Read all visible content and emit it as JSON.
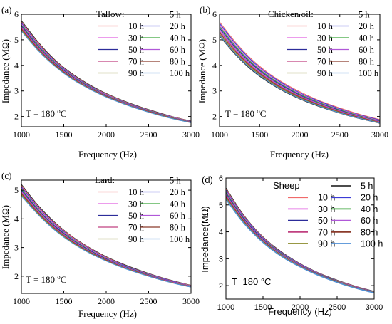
{
  "colors": {
    "5 h": "#333333",
    "10 h": "#f06a6a",
    "20 h": "#3b3bd6",
    "30 h": "#e060e0",
    "40 h": "#3aa63a",
    "50 h": "#2c2c9a",
    "60 h": "#b058d8",
    "70 h": "#c04080",
    "80 h": "#8b3a2a",
    "90 h": "#8a8a2a",
    "100 h": "#4f8fd6"
  },
  "chart_data": [
    {
      "type": "line",
      "panel_label": "(a)",
      "legend_title": "Tallow:",
      "annotation": "T = 180 ",
      "annotation_sup": "o",
      "annotation_unit": "C",
      "xlabel": "Frequency (Hz)",
      "ylabel": "Impedance (MΩ)",
      "xlim": [
        1000,
        3000
      ],
      "ylim": [
        1.6,
        6.0
      ],
      "xticks": [
        1000,
        1500,
        2000,
        2500,
        3000
      ],
      "yticks": [
        2,
        3,
        4,
        5,
        6
      ],
      "grid": false,
      "legend_position": "top-right",
      "x": [
        1000,
        1200,
        1400,
        1600,
        1800,
        2000,
        2200,
        2400,
        2600,
        2800,
        3000
      ],
      "series": [
        {
          "name": "5 h",
          "values": [
            5.75,
            4.9,
            4.2,
            3.67,
            3.25,
            2.9,
            2.62,
            2.38,
            2.17,
            1.98,
            1.82
          ]
        },
        {
          "name": "10 h",
          "values": [
            5.7,
            4.86,
            4.17,
            3.64,
            3.22,
            2.88,
            2.6,
            2.36,
            2.15,
            1.97,
            1.81
          ]
        },
        {
          "name": "20 h",
          "values": [
            5.66,
            4.82,
            4.14,
            3.62,
            3.2,
            2.86,
            2.58,
            2.35,
            2.14,
            1.96,
            1.8
          ]
        },
        {
          "name": "30 h",
          "values": [
            5.62,
            4.79,
            4.11,
            3.6,
            3.18,
            2.85,
            2.57,
            2.34,
            2.13,
            1.95,
            1.79
          ]
        },
        {
          "name": "40 h",
          "values": [
            5.58,
            4.76,
            4.09,
            3.58,
            3.17,
            2.83,
            2.56,
            2.33,
            2.12,
            1.94,
            1.79
          ]
        },
        {
          "name": "50 h",
          "values": [
            5.54,
            4.72,
            4.06,
            3.56,
            3.15,
            2.82,
            2.55,
            2.32,
            2.11,
            1.93,
            1.78
          ]
        },
        {
          "name": "60 h",
          "values": [
            5.5,
            4.69,
            4.04,
            3.54,
            3.14,
            2.81,
            2.54,
            2.31,
            2.1,
            1.93,
            1.78
          ]
        },
        {
          "name": "70 h",
          "values": [
            5.46,
            4.66,
            4.02,
            3.52,
            3.12,
            2.8,
            2.53,
            2.3,
            2.1,
            1.92,
            1.77
          ]
        },
        {
          "name": "80 h",
          "values": [
            5.42,
            4.63,
            4.0,
            3.5,
            3.11,
            2.79,
            2.52,
            2.29,
            2.09,
            1.92,
            1.77
          ]
        },
        {
          "name": "90 h",
          "values": [
            5.38,
            4.6,
            3.97,
            3.48,
            3.09,
            2.77,
            2.51,
            2.28,
            2.08,
            1.91,
            1.76
          ]
        },
        {
          "name": "100 h",
          "values": [
            5.34,
            4.57,
            3.95,
            3.46,
            3.08,
            2.76,
            2.5,
            2.27,
            2.07,
            1.9,
            1.76
          ]
        }
      ]
    },
    {
      "type": "line",
      "panel_label": "(b)",
      "legend_title": "Chicken oil:",
      "annotation": "T = 180 ",
      "annotation_sup": "o",
      "annotation_unit": "C",
      "xlabel": "Frequency (Hz)",
      "ylabel": "Impedance (MΩ)",
      "xlim": [
        1000,
        3000
      ],
      "ylim": [
        1.6,
        6.0
      ],
      "xticks": [
        1000,
        1500,
        2000,
        2500,
        3000
      ],
      "yticks": [
        2,
        3,
        4,
        5,
        6
      ],
      "grid": false,
      "legend_position": "top-right",
      "x": [
        1000,
        1200,
        1400,
        1600,
        1800,
        2000,
        2200,
        2400,
        2600,
        2800,
        3000
      ],
      "series": [
        {
          "name": "5 h",
          "values": [
            5.15,
            4.42,
            3.82,
            3.36,
            2.99,
            2.69,
            2.44,
            2.23,
            2.04,
            1.88,
            1.74
          ]
        },
        {
          "name": "10 h",
          "values": [
            5.7,
            4.9,
            4.24,
            3.72,
            3.31,
            2.97,
            2.68,
            2.44,
            2.23,
            2.04,
            1.88
          ]
        },
        {
          "name": "20 h",
          "values": [
            5.64,
            4.85,
            4.19,
            3.68,
            3.27,
            2.93,
            2.65,
            2.41,
            2.2,
            2.02,
            1.86
          ]
        },
        {
          "name": "30 h",
          "values": [
            5.58,
            4.79,
            4.14,
            3.64,
            3.23,
            2.9,
            2.62,
            2.38,
            2.18,
            2.0,
            1.84
          ]
        },
        {
          "name": "40 h",
          "values": [
            5.52,
            4.74,
            4.1,
            3.6,
            3.2,
            2.87,
            2.6,
            2.36,
            2.16,
            1.98,
            1.82
          ]
        },
        {
          "name": "50 h",
          "values": [
            5.46,
            4.69,
            4.06,
            3.56,
            3.17,
            2.84,
            2.57,
            2.34,
            2.14,
            1.96,
            1.81
          ]
        },
        {
          "name": "60 h",
          "values": [
            5.4,
            4.64,
            4.01,
            3.53,
            3.13,
            2.81,
            2.55,
            2.32,
            2.12,
            1.95,
            1.8
          ]
        },
        {
          "name": "70 h",
          "values": [
            5.34,
            4.59,
            3.97,
            3.49,
            3.1,
            2.79,
            2.52,
            2.3,
            2.1,
            1.93,
            1.78
          ]
        },
        {
          "name": "80 h",
          "values": [
            5.28,
            4.54,
            3.93,
            3.46,
            3.07,
            2.76,
            2.5,
            2.28,
            2.08,
            1.92,
            1.77
          ]
        },
        {
          "name": "90 h",
          "values": [
            5.22,
            4.49,
            3.89,
            3.42,
            3.04,
            2.73,
            2.48,
            2.26,
            2.06,
            1.9,
            1.76
          ]
        },
        {
          "name": "100 h",
          "values": [
            5.18,
            4.45,
            3.85,
            3.39,
            3.01,
            2.71,
            2.46,
            2.24,
            2.05,
            1.89,
            1.75
          ]
        }
      ]
    },
    {
      "type": "line",
      "panel_label": "(c)",
      "legend_title": "Lard:",
      "annotation": "T = 180 ",
      "annotation_sup": "o",
      "annotation_unit": "C",
      "xlabel": "Frequency (Hz)",
      "ylabel": "Impedance (MΩ)",
      "xlim": [
        1000,
        3000
      ],
      "ylim": [
        1.4,
        5.35
      ],
      "xticks": [
        1000,
        1500,
        2000,
        2500,
        3000
      ],
      "yticks": [
        2,
        3,
        4,
        5
      ],
      "grid": false,
      "legend_position": "top-right",
      "x": [
        1000,
        1200,
        1400,
        1600,
        1800,
        2000,
        2200,
        2400,
        2600,
        2800,
        3000
      ],
      "series": [
        {
          "name": "5 h",
          "values": [
            5.2,
            4.46,
            3.86,
            3.38,
            3.0,
            2.68,
            2.42,
            2.2,
            2.0,
            1.83,
            1.68
          ]
        },
        {
          "name": "10 h",
          "values": [
            5.16,
            4.42,
            3.83,
            3.36,
            2.98,
            2.66,
            2.4,
            2.18,
            1.99,
            1.82,
            1.67
          ]
        },
        {
          "name": "20 h",
          "values": [
            5.12,
            4.39,
            3.8,
            3.33,
            2.96,
            2.64,
            2.39,
            2.17,
            1.98,
            1.81,
            1.66
          ]
        },
        {
          "name": "30 h",
          "values": [
            5.08,
            4.36,
            3.77,
            3.31,
            2.94,
            2.63,
            2.37,
            2.16,
            1.97,
            1.8,
            1.66
          ]
        },
        {
          "name": "40 h",
          "values": [
            5.04,
            4.32,
            3.74,
            3.29,
            2.92,
            2.61,
            2.36,
            2.15,
            1.96,
            1.79,
            1.65
          ]
        },
        {
          "name": "50 h",
          "values": [
            5.0,
            4.29,
            3.72,
            3.26,
            2.9,
            2.6,
            2.35,
            2.14,
            1.95,
            1.79,
            1.64
          ]
        },
        {
          "name": "60 h",
          "values": [
            4.96,
            4.26,
            3.69,
            3.24,
            2.88,
            2.58,
            2.34,
            2.13,
            1.94,
            1.78,
            1.64
          ]
        },
        {
          "name": "70 h",
          "values": [
            4.92,
            4.23,
            3.67,
            3.22,
            2.86,
            2.57,
            2.32,
            2.12,
            1.93,
            1.77,
            1.63
          ]
        },
        {
          "name": "80 h",
          "values": [
            4.88,
            4.2,
            3.64,
            3.2,
            2.85,
            2.56,
            2.31,
            2.11,
            1.92,
            1.76,
            1.63
          ]
        },
        {
          "name": "90 h",
          "values": [
            4.84,
            4.17,
            3.62,
            3.18,
            2.83,
            2.54,
            2.3,
            2.1,
            1.91,
            1.76,
            1.62
          ]
        },
        {
          "name": "100 h",
          "values": [
            4.8,
            4.14,
            3.59,
            3.16,
            2.81,
            2.53,
            2.29,
            2.09,
            1.91,
            1.75,
            1.62
          ]
        }
      ]
    },
    {
      "type": "line",
      "panel_label": "(d)",
      "legend_title": "Sheep",
      "annotation": "T=180 °C",
      "xlabel": "Frequency (Hz)",
      "ylabel": "Impedance(MΩ)",
      "xlim": [
        1000,
        3000
      ],
      "ylim": [
        1.5,
        6.0
      ],
      "xticks": [
        1000,
        1500,
        2000,
        2500,
        3000
      ],
      "yticks": [
        2,
        3,
        4,
        5,
        6
      ],
      "grid": false,
      "legend_position": "top-right",
      "x": [
        1000,
        1200,
        1400,
        1600,
        1800,
        2000,
        2200,
        2400,
        2600,
        2800,
        3000
      ],
      "series": [
        {
          "name": "5 h",
          "values": [
            5.62,
            4.76,
            4.08,
            3.56,
            3.15,
            2.81,
            2.53,
            2.3,
            2.1,
            1.93,
            1.78
          ]
        },
        {
          "name": "10 h",
          "values": [
            5.58,
            4.73,
            4.06,
            3.54,
            3.13,
            2.8,
            2.52,
            2.29,
            2.09,
            1.92,
            1.77
          ]
        },
        {
          "name": "20 h",
          "values": [
            5.54,
            4.7,
            4.04,
            3.52,
            3.12,
            2.79,
            2.51,
            2.28,
            2.08,
            1.91,
            1.77
          ]
        },
        {
          "name": "30 h",
          "values": [
            5.5,
            4.67,
            4.01,
            3.5,
            3.1,
            2.77,
            2.5,
            2.27,
            2.08,
            1.91,
            1.76
          ]
        },
        {
          "name": "40 h",
          "values": [
            5.46,
            4.64,
            3.99,
            3.49,
            3.09,
            2.76,
            2.49,
            2.27,
            2.07,
            1.9,
            1.76
          ]
        },
        {
          "name": "50 h",
          "values": [
            5.42,
            4.61,
            3.97,
            3.47,
            3.07,
            2.75,
            2.48,
            2.26,
            2.06,
            1.9,
            1.75
          ]
        },
        {
          "name": "60 h",
          "values": [
            5.38,
            4.58,
            3.94,
            3.45,
            3.06,
            2.74,
            2.47,
            2.25,
            2.06,
            1.89,
            1.75
          ]
        },
        {
          "name": "70 h",
          "values": [
            5.34,
            4.55,
            3.92,
            3.43,
            3.04,
            2.73,
            2.46,
            2.24,
            2.05,
            1.89,
            1.74
          ]
        },
        {
          "name": "80 h",
          "values": [
            5.3,
            4.52,
            3.9,
            3.42,
            3.03,
            2.72,
            2.46,
            2.24,
            2.05,
            1.88,
            1.74
          ]
        },
        {
          "name": "90 h",
          "values": [
            5.26,
            4.49,
            3.88,
            3.4,
            3.02,
            2.71,
            2.45,
            2.23,
            2.04,
            1.88,
            1.74
          ]
        },
        {
          "name": "100 h",
          "values": [
            5.22,
            4.46,
            3.86,
            3.38,
            3.0,
            2.7,
            2.44,
            2.22,
            2.03,
            1.87,
            1.73
          ]
        }
      ]
    }
  ]
}
